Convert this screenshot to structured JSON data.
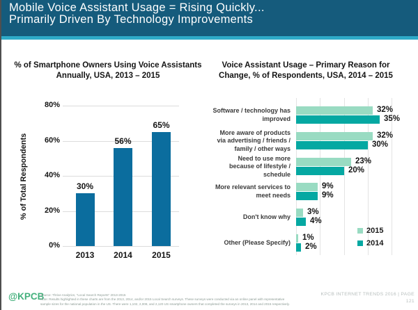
{
  "header": {
    "title_line1": "Mobile Voice Assistant Usage = Rising Quickly...",
    "title_line2": "Primarily Driven By Technology Improvements"
  },
  "colors": {
    "header_background": "#155B7C",
    "header_accent_strip": "#2EAAC8",
    "left_bar_blue": "#0B6D9E",
    "series_2015_green": "#99DBC2",
    "series_2014_teal": "#05A8A2",
    "gridline_gray": "#DCDCDC",
    "kpcb_logo_green": "#43B07C"
  },
  "chart_data": [
    {
      "type": "bar",
      "title": "% of Smartphone Owners Using Voice Assistants Annually, USA, 2013 – 2015",
      "title_lines": [
        "% of Smartphone Owners Using Voice Assistants",
        "Annually, USA, 2013 – 2015"
      ],
      "categories": [
        "2013",
        "2014",
        "2015"
      ],
      "values": [
        30,
        56,
        65
      ],
      "value_labels": [
        "30%",
        "56%",
        "65%"
      ],
      "xlabel": "",
      "ylabel": "% of Total Respondents",
      "ylim": [
        0,
        80
      ],
      "yticks": [
        0,
        20,
        40,
        60,
        80
      ],
      "ytick_labels": [
        "0%",
        "20%",
        "40%",
        "60%",
        "80%"
      ],
      "grid": true,
      "bar_color": "#0B6D9E",
      "legend_position": "none"
    },
    {
      "type": "bar-horizontal-grouped",
      "title": "Voice Assistant Usage – Primary Reason for Change, % of Respondents, USA, 2014 – 2015",
      "title_lines": [
        "Voice Assistant Usage – Primary Reason for",
        "Change, % of Respondents, USA, 2014 – 2015"
      ],
      "categories": [
        "Software / technology has improved",
        "More aware of products via advertising / friends / family / other ways",
        "Need to use more because of lifestyle / schedule",
        "More relevant services to meet needs",
        "Don't know why",
        "Other (Please Specify)"
      ],
      "series": [
        {
          "name": "2015",
          "color": "#99DBC2",
          "values": [
            32,
            32,
            23,
            9,
            3,
            1
          ]
        },
        {
          "name": "2014",
          "color": "#05A8A2",
          "values": [
            35,
            30,
            20,
            9,
            4,
            2
          ]
        }
      ],
      "value_label_format": "percent",
      "xlim": [
        0,
        40
      ],
      "xticks": [
        0,
        10,
        20,
        30,
        40
      ],
      "grid": true,
      "legend_position": "bottom-right"
    }
  ],
  "footer": {
    "logo": "@KPCB",
    "source_line": "Source: Thrive Analytics, \"Local Search Reports\" 2013-2015",
    "note_line": "Note: Results highlighted in these charts are from the 2013, 2014, and/or 2015 Local Search surveys. These surveys were conducted via an online panel with representative sample sizes for the national population in the US. There were 1,102, 2,008, and 2,120 US smartphone owners that completed the surveys in 2013, 2014 and 2015 respectively.",
    "page_line1": "KPCB INTERNET TRENDS 2016   |   PAGE",
    "page_line2": "121"
  }
}
